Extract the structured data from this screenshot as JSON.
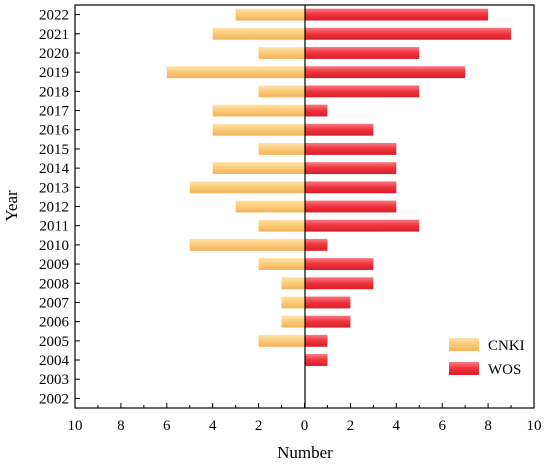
{
  "chart_data": {
    "type": "bar",
    "orientation": "horizontal-diverging",
    "xlabel": "Number",
    "ylabel": "Year",
    "xlim": [
      -10,
      10
    ],
    "x_ticks": [
      -10,
      -8,
      -6,
      -4,
      -2,
      0,
      2,
      4,
      6,
      8,
      10
    ],
    "x_tick_labels": [
      "10",
      "8",
      "6",
      "4",
      "2",
      "0",
      "2",
      "4",
      "6",
      "8",
      "10"
    ],
    "categories": [
      "2002",
      "2003",
      "2004",
      "2005",
      "2006",
      "2007",
      "2008",
      "2009",
      "2010",
      "2011",
      "2012",
      "2013",
      "2014",
      "2015",
      "2016",
      "2017",
      "2018",
      "2019",
      "2020",
      "2021",
      "2022"
    ],
    "series": [
      {
        "name": "CNKI",
        "direction": "left",
        "color": "#fcc978",
        "values": [
          0,
          0,
          0,
          2,
          1,
          1,
          1,
          2,
          5,
          2,
          3,
          5,
          4,
          2,
          4,
          4,
          2,
          6,
          2,
          4,
          3
        ]
      },
      {
        "name": "WOS",
        "direction": "right",
        "color": "#f0323c",
        "values": [
          0,
          0,
          1,
          1,
          2,
          2,
          3,
          3,
          1,
          5,
          4,
          4,
          4,
          4,
          3,
          1,
          5,
          7,
          5,
          9,
          8
        ]
      }
    ],
    "legend": {
      "position": "bottom-right",
      "entries": [
        "CNKI",
        "WOS"
      ]
    },
    "grid": false
  }
}
